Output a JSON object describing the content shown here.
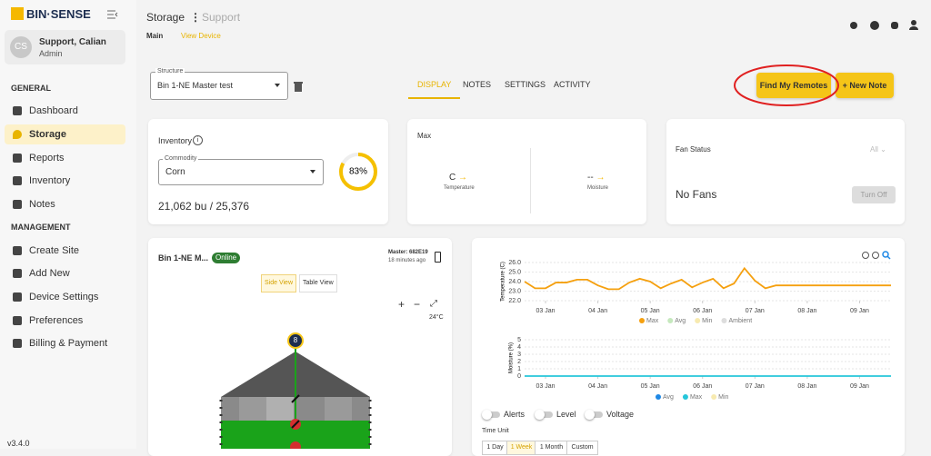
{
  "logo": "BIN·SENSE",
  "user": {
    "initials": "CS",
    "name": "Support, Calian",
    "role": "Admin"
  },
  "nav": {
    "general_heading": "GENERAL",
    "general": [
      "Dashboard",
      "Storage",
      "Reports",
      "Inventory",
      "Notes"
    ],
    "management_heading": "MANAGEMENT",
    "management": [
      "Create Site",
      "Add New",
      "Device Settings",
      "Preferences",
      "Billing & Payment"
    ],
    "active": "Storage"
  },
  "version": "v3.4.0",
  "header": {
    "title": "Storage",
    "subtitle": "Support",
    "breadcrumb": [
      "Main",
      "View Device"
    ]
  },
  "structure": {
    "label": "Structure",
    "value": "Bin 1-NE Master test"
  },
  "tabs": {
    "items": [
      "DISPLAY",
      "NOTES",
      "SETTINGS",
      "ACTIVITY"
    ],
    "active": "DISPLAY"
  },
  "buttons": {
    "find": "Find My Remotes",
    "new_note": "New Note"
  },
  "inventory": {
    "title": "Inventory",
    "commodity_label": "Commodity",
    "commodity": "Corn",
    "fill_percent": 83,
    "fill_label": "83%",
    "amount": "21,062 bu / 25,376"
  },
  "max": {
    "title": "Max",
    "temperature_value": "C",
    "temperature_label": "Temperature",
    "moisture_value": "--",
    "moisture_label": "Moisture"
  },
  "fan": {
    "title": "Fan Status",
    "filter": "All",
    "status": "No Fans",
    "button": "Turn Off"
  },
  "bin": {
    "name": "Bin 1-NE M...",
    "status": "Online",
    "master": "Master: 682E19",
    "updated": "18 minutes ago",
    "views": [
      "Side View",
      "Table View"
    ],
    "active_view": "Side View",
    "ambient": "24°C",
    "sensor": "8"
  },
  "temperature_chart": {
    "type": "line",
    "ylabel": "Temperature (C)",
    "color": "#f5a00f",
    "x": [
      2.6,
      2.8,
      3.0,
      3.2,
      3.4,
      3.6,
      3.8,
      4.0,
      4.2,
      4.4,
      4.6,
      4.8,
      5.0,
      5.2,
      5.4,
      5.6,
      5.8,
      6.0,
      6.2,
      6.4,
      6.6,
      6.8,
      7.0,
      7.2,
      7.4,
      7.6,
      7.8,
      8.0,
      8.2,
      8.4,
      8.6,
      8.8,
      9.0,
      9.2,
      9.4,
      9.6
    ],
    "values": [
      24.0,
      23.3,
      23.3,
      23.9,
      23.9,
      24.2,
      24.2,
      23.6,
      23.2,
      23.2,
      23.9,
      24.3,
      24.0,
      23.3,
      23.8,
      24.2,
      23.4,
      23.9,
      24.3,
      23.3,
      23.8,
      25.4,
      24.1,
      23.3,
      23.6,
      23.6,
      23.6,
      23.6,
      23.6,
      23.6,
      23.6,
      23.6,
      23.6,
      23.6,
      23.6,
      23.6
    ],
    "xlim": [
      2.6,
      9.6
    ],
    "xticks": [
      {
        "value": 3,
        "label": "03 Jan"
      },
      {
        "value": 4,
        "label": "04 Jan"
      },
      {
        "value": 5,
        "label": "05 Jan"
      },
      {
        "value": 6,
        "label": "06 Jan"
      },
      {
        "value": 7,
        "label": "07 Jan"
      },
      {
        "value": 8,
        "label": "08 Jan"
      },
      {
        "value": 9,
        "label": "09 Jan"
      }
    ],
    "ylim": [
      22,
      26
    ],
    "yticks": [
      {
        "value": 22,
        "label": "22.0"
      },
      {
        "value": 23,
        "label": "23.0"
      },
      {
        "value": 24,
        "label": "24.0"
      },
      {
        "value": 25,
        "label": "25.0"
      },
      {
        "value": 26,
        "label": "26.0"
      }
    ],
    "legend": [
      {
        "name": "Max",
        "color": "#f5a00f"
      },
      {
        "name": "Avg",
        "color": "#c5e8bd"
      },
      {
        "name": "Min",
        "color": "#f7eab0"
      },
      {
        "name": "Ambient",
        "color": "#dddddd"
      }
    ]
  },
  "moisture_chart": {
    "type": "line",
    "ylabel": "Moisture (%)",
    "color": "#26c6da",
    "x": [
      2.6,
      9.6
    ],
    "values": [
      0,
      0
    ],
    "xlim": [
      2.6,
      9.6
    ],
    "xticks": [
      {
        "value": 3,
        "label": "03 Jan"
      },
      {
        "value": 4,
        "label": "04 Jan"
      },
      {
        "value": 5,
        "label": "05 Jan"
      },
      {
        "value": 6,
        "label": "06 Jan"
      },
      {
        "value": 7,
        "label": "07 Jan"
      },
      {
        "value": 8,
        "label": "08 Jan"
      },
      {
        "value": 9,
        "label": "09 Jan"
      }
    ],
    "ylim": [
      0,
      5
    ],
    "yticks": [
      0,
      1,
      2,
      3,
      4,
      5
    ],
    "legend": [
      {
        "name": "Avg",
        "color": "#1e88e5"
      },
      {
        "name": "Max",
        "color": "#26c6da"
      },
      {
        "name": "Min",
        "color": "#f7eab0"
      }
    ]
  },
  "toggles": [
    "Alerts",
    "Level",
    "Voltage"
  ],
  "time_unit": {
    "label": "Time Unit",
    "options": [
      "1 Day",
      "1 Week",
      "1 Month",
      "Custom"
    ],
    "active": "1 Week"
  }
}
